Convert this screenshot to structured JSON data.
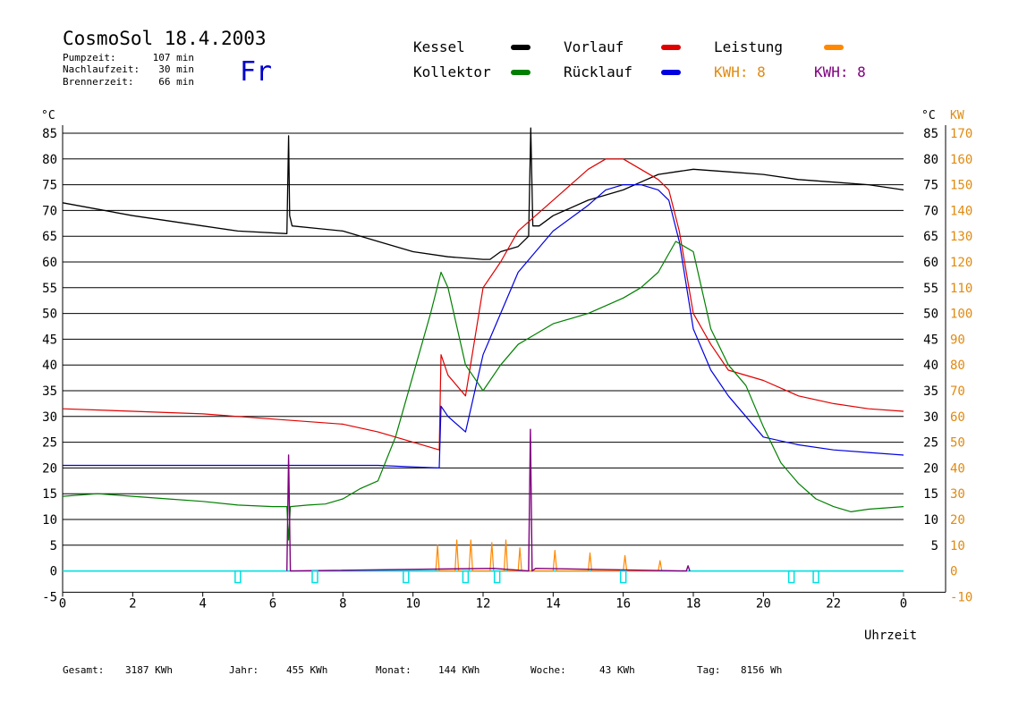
{
  "header": {
    "title": "CosmoSol 18.4.2003",
    "day": "Fr",
    "stats": [
      {
        "label": "Pumpzeit:",
        "value": "107 min"
      },
      {
        "label": "Nachlaufzeit:",
        "value": "30 min"
      },
      {
        "label": "Brennerzeit:",
        "value": "66 min"
      }
    ]
  },
  "legend": {
    "items": [
      {
        "label": "Kessel",
        "color": "#000000"
      },
      {
        "label": "Vorlauf",
        "color": "#e00000"
      },
      {
        "label": "Leistung",
        "color": "#ff8800"
      },
      {
        "label": "Kollektor",
        "color": "#008000"
      },
      {
        "label": "Rücklauf",
        "color": "#0000e0"
      }
    ],
    "kwh": [
      {
        "label": "KWH: 8",
        "color": "#e08a10"
      },
      {
        "label": "KWH: 8",
        "color": "#800080"
      }
    ]
  },
  "footer": [
    {
      "label": "Gesamt:",
      "value": "3187 KWh"
    },
    {
      "label": "Jahr:",
      "value": "455 KWh"
    },
    {
      "label": "Monat:",
      "value": "144 KWh"
    },
    {
      "label": "Woche:",
      "value": "43 KWh"
    },
    {
      "label": "Tag:",
      "value": "8156 Wh"
    }
  ],
  "chart_data": {
    "type": "line",
    "title": "CosmoSol 18.4.2003",
    "xlabel": "Uhrzeit",
    "ylabel_left": "°C",
    "ylabel_right_temp": "°C",
    "ylabel_right_power": "KW",
    "xlim": [
      0,
      24
    ],
    "ylim": [
      -5,
      87
    ],
    "x_ticks": [
      "0",
      "2",
      "4",
      "6",
      "8",
      "10",
      "12",
      "14",
      "16",
      "18",
      "20",
      "22",
      "0"
    ],
    "y_ticks_left": [
      -5,
      0,
      5,
      10,
      15,
      20,
      25,
      30,
      35,
      40,
      45,
      50,
      55,
      60,
      65,
      70,
      75,
      80,
      85
    ],
    "y_ticks_right_temp": [
      5,
      10,
      15,
      20,
      25,
      30,
      35,
      40,
      45,
      50,
      55,
      60,
      65,
      70,
      75,
      80,
      85
    ],
    "y_ticks_right_power": [
      -10,
      0,
      10,
      20,
      30,
      40,
      50,
      60,
      70,
      80,
      90,
      100,
      110,
      120,
      130,
      140,
      150,
      160,
      170
    ],
    "grid": true,
    "series": [
      {
        "name": "Kessel",
        "color": "#000000",
        "x": [
          0,
          2,
          4,
          5,
          6.4,
          6.45,
          6.48,
          6.55,
          8,
          9,
          10,
          11,
          12,
          12.2,
          12.5,
          13,
          13.3,
          13.36,
          13.42,
          13.6,
          14,
          15,
          16,
          16.5,
          17,
          17.5,
          18,
          19,
          20,
          21,
          22,
          23,
          24
        ],
        "y": [
          71.5,
          69,
          67,
          66,
          65.5,
          84.5,
          69,
          67,
          66,
          64,
          62,
          61,
          60.5,
          60.5,
          62,
          63,
          65,
          86,
          67,
          67,
          69,
          72,
          74,
          75.5,
          77,
          77.5,
          78,
          77.5,
          77,
          76,
          75.5,
          75,
          74
        ]
      },
      {
        "name": "Vorlauf",
        "color": "#e00000",
        "x": [
          0,
          2,
          4,
          6,
          8,
          9,
          10,
          10.75,
          10.8,
          11,
          11.5,
          12,
          12.5,
          13,
          14,
          15,
          15.5,
          16,
          16.5,
          17,
          17.3,
          17.6,
          18,
          18.5,
          19,
          20,
          21,
          22,
          23,
          24
        ],
        "y": [
          31.5,
          31,
          30.5,
          29.5,
          28.5,
          27,
          25,
          23.5,
          42,
          38,
          34,
          55,
          60,
          66,
          72,
          78,
          80,
          80,
          78,
          76,
          74,
          66,
          50,
          44,
          39,
          37,
          34,
          32.5,
          31.5,
          31
        ]
      },
      {
        "name": "Rücklauf",
        "color": "#0000e0",
        "x": [
          0,
          2,
          4,
          6,
          8,
          9,
          10,
          10.75,
          10.8,
          11,
          11.5,
          12,
          12.5,
          13,
          14,
          15,
          15.5,
          16,
          16.5,
          17,
          17.3,
          17.6,
          18,
          18.5,
          19,
          20,
          21,
          22,
          23,
          24
        ],
        "y": [
          20.5,
          20.5,
          20.5,
          20.5,
          20.5,
          20.5,
          20.2,
          20,
          32,
          30,
          27,
          42,
          50,
          58,
          66,
          71,
          74,
          75,
          75,
          74,
          72,
          64,
          47,
          39,
          34,
          26,
          24.5,
          23.5,
          23,
          22.5
        ]
      },
      {
        "name": "Kollektor",
        "color": "#008000",
        "x": [
          0,
          1,
          2,
          3,
          4,
          5,
          6,
          6.4,
          6.45,
          6.5,
          7,
          7.5,
          8,
          8.5,
          9,
          9.5,
          10,
          10.5,
          10.8,
          11,
          11.5,
          12,
          12.5,
          13,
          13.5,
          14,
          15,
          16,
          16.5,
          17,
          17.5,
          18,
          18.5,
          19,
          19.5,
          20,
          20.5,
          21,
          21.5,
          22,
          22.5,
          23,
          24
        ],
        "y": [
          14.5,
          15,
          14.5,
          14,
          13.5,
          12.8,
          12.5,
          12.5,
          6,
          12.5,
          12.8,
          13,
          14,
          16,
          17.5,
          26,
          38,
          50,
          58,
          55,
          40,
          35,
          40,
          44,
          46,
          48,
          50,
          53,
          55,
          58,
          64,
          62,
          47,
          40,
          36,
          28,
          21,
          17,
          14,
          12.5,
          11.5,
          12,
          12.5
        ]
      },
      {
        "name": "Leistung",
        "color": "#ff8800",
        "x": [
          10.65,
          10.7,
          10.75,
          11.2,
          11.25,
          11.3,
          11.6,
          11.65,
          11.7,
          12.2,
          12.25,
          12.3,
          12.6,
          12.65,
          12.7,
          13.0,
          13.05,
          13.1,
          14,
          14.05,
          14.1,
          15,
          15.05,
          15.1,
          16,
          16.05,
          16.1,
          17,
          17.05,
          17.1
        ],
        "y": [
          0,
          5,
          0,
          0,
          6,
          0,
          0,
          6,
          0,
          0,
          5.5,
          0,
          0,
          6,
          0,
          0,
          4.5,
          0,
          0,
          4,
          0,
          0,
          3.5,
          0,
          0,
          3,
          0,
          0,
          2,
          0
        ]
      },
      {
        "name": "Brenner",
        "color": "#800080",
        "x": [
          6.4,
          6.45,
          6.5,
          12.3,
          13.3,
          13.35,
          13.4,
          13.5,
          17.8,
          17.85,
          17.9
        ],
        "y": [
          0,
          22.5,
          0,
          0.5,
          0,
          27.5,
          0,
          0.5,
          0,
          1,
          0
        ]
      }
    ],
    "pump_markers_x": [
      5.0,
      7.2,
      9.8,
      11.5,
      12.4,
      16.0,
      20.8,
      21.5
    ],
    "marker_color": "#00e0e0"
  }
}
